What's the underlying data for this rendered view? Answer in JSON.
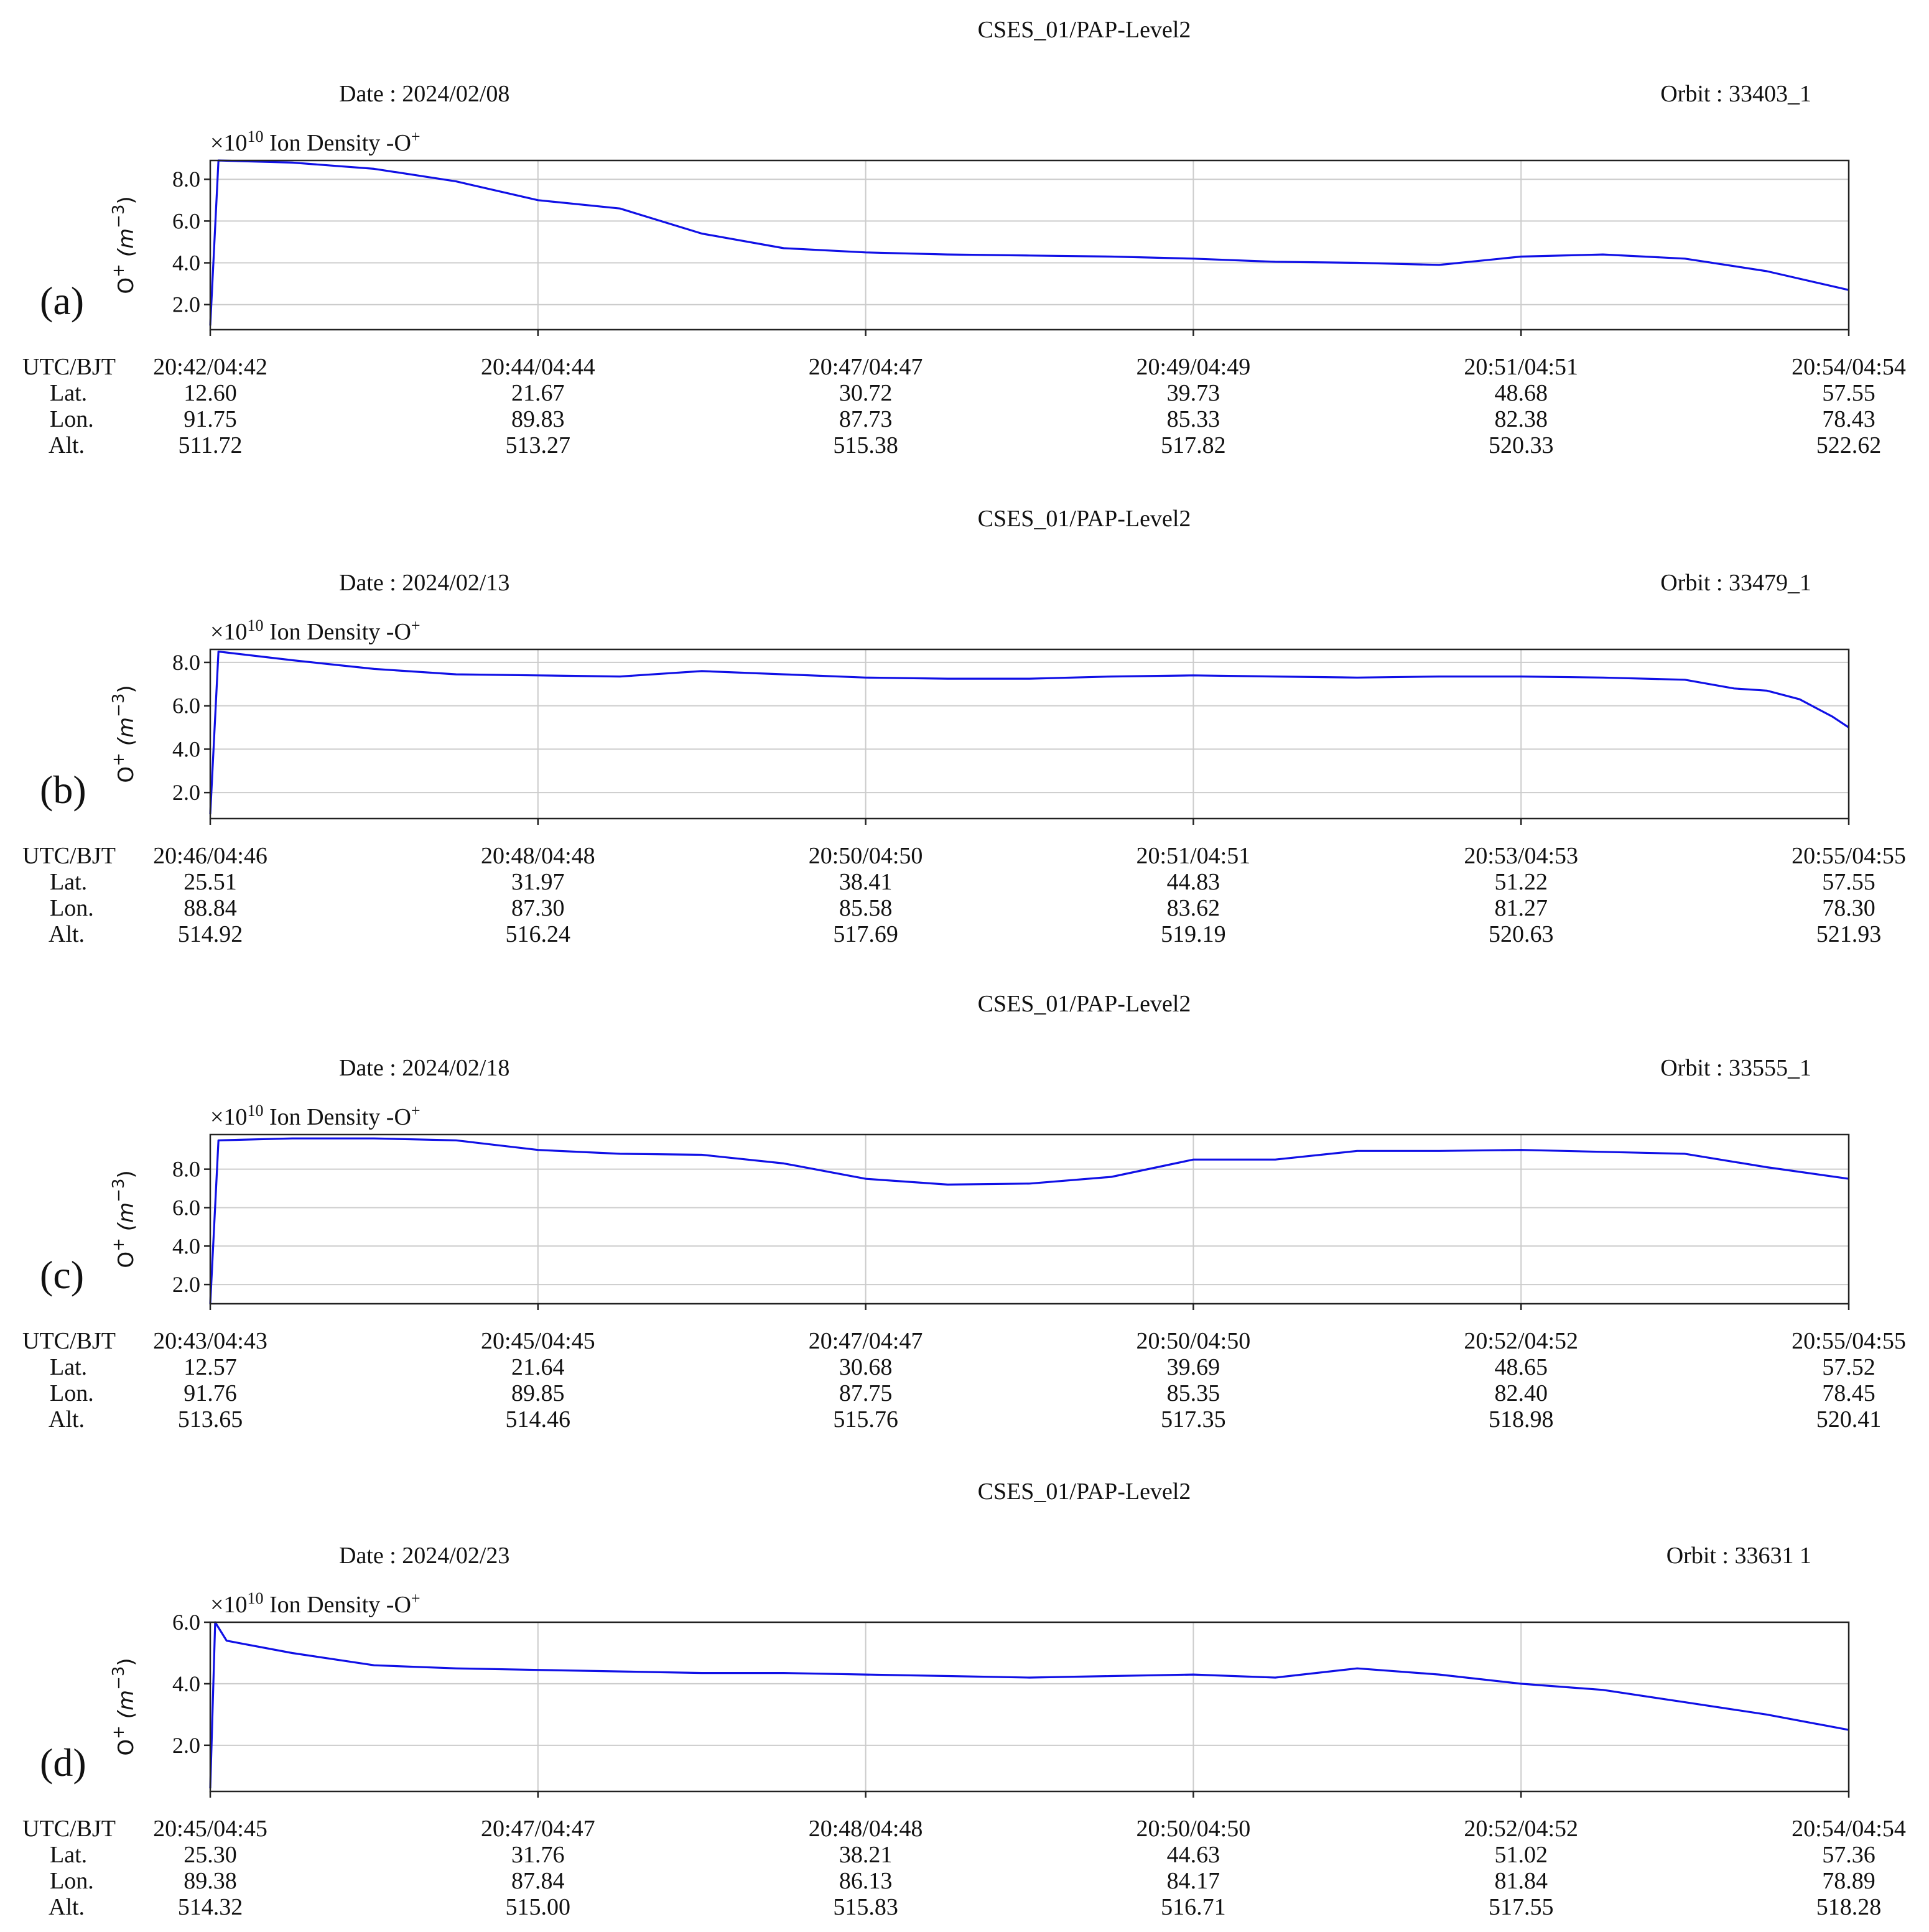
{
  "chart_data": [
    {
      "panel": "(a)",
      "type": "line",
      "title": "CSES_01/PAP-Level2",
      "date": "Date : 2024/02/08",
      "orbit": "Orbit : 33403_1",
      "multiplier": "×10",
      "exponent": "10",
      "series_label": "Ion Density -O",
      "ylabel": "O",
      "yunit": "m",
      "ylim": [
        0.8,
        8.9
      ],
      "yticks": [
        "2.0",
        "4.0",
        "6.0",
        "8.0"
      ],
      "row_labels": [
        "UTC/BJT",
        "Lat.",
        "Lon.",
        "Alt."
      ],
      "columns": [
        {
          "time": "20:42/04:42",
          "lat": "12.60",
          "lon": "91.75",
          "alt": "511.72"
        },
        {
          "time": "20:44/04:44",
          "lat": "21.67",
          "lon": "89.83",
          "alt": "513.27"
        },
        {
          "time": "20:47/04:47",
          "lat": "30.72",
          "lon": "87.73",
          "alt": "515.38"
        },
        {
          "time": "20:49/04:49",
          "lat": "39.73",
          "lon": "85.33",
          "alt": "517.82"
        },
        {
          "time": "20:51/04:51",
          "lat": "48.68",
          "lon": "82.38",
          "alt": "520.33"
        },
        {
          "time": "20:54/04:54",
          "lat": "57.55",
          "lon": "78.43",
          "alt": "522.62"
        }
      ],
      "series": [
        {
          "color": "#1010e6",
          "x": [
            0,
            0.005,
            0.05,
            0.1,
            0.15,
            0.2,
            0.25,
            0.3,
            0.35,
            0.4,
            0.45,
            0.5,
            0.55,
            0.6,
            0.65,
            0.7,
            0.75,
            0.8,
            0.85,
            0.9,
            0.95,
            1
          ],
          "y": [
            1.0,
            8.9,
            8.8,
            8.5,
            7.9,
            7.0,
            6.6,
            5.4,
            4.7,
            4.5,
            4.4,
            4.35,
            4.3,
            4.2,
            4.05,
            4.0,
            3.9,
            4.3,
            4.4,
            4.2,
            3.6,
            2.7
          ]
        }
      ]
    },
    {
      "panel": "(b)",
      "type": "line",
      "title": "CSES_01/PAP-Level2",
      "date": "Date : 2024/02/13",
      "orbit": "Orbit : 33479_1",
      "multiplier": "×10",
      "exponent": "10",
      "series_label": "Ion Density -O",
      "ylabel": "O",
      "yunit": "m",
      "ylim": [
        0.8,
        8.6
      ],
      "yticks": [
        "2.0",
        "4.0",
        "6.0",
        "8.0"
      ],
      "row_labels": [
        "UTC/BJT",
        "Lat.",
        "Lon.",
        "Alt."
      ],
      "columns": [
        {
          "time": "20:46/04:46",
          "lat": "25.51",
          "lon": "88.84",
          "alt": "514.92"
        },
        {
          "time": "20:48/04:48",
          "lat": "31.97",
          "lon": "87.30",
          "alt": "516.24"
        },
        {
          "time": "20:50/04:50",
          "lat": "38.41",
          "lon": "85.58",
          "alt": "517.69"
        },
        {
          "time": "20:51/04:51",
          "lat": "44.83",
          "lon": "83.62",
          "alt": "519.19"
        },
        {
          "time": "20:53/04:53",
          "lat": "51.22",
          "lon": "81.27",
          "alt": "520.63"
        },
        {
          "time": "20:55/04:55",
          "lat": "57.55",
          "lon": "78.30",
          "alt": "521.93"
        }
      ],
      "series": [
        {
          "color": "#1010e6",
          "x": [
            0,
            0.005,
            0.05,
            0.1,
            0.15,
            0.2,
            0.25,
            0.3,
            0.35,
            0.4,
            0.45,
            0.5,
            0.55,
            0.6,
            0.65,
            0.7,
            0.75,
            0.8,
            0.85,
            0.9,
            0.93,
            0.95,
            0.97,
            0.99,
            1
          ],
          "y": [
            1.0,
            8.5,
            8.1,
            7.7,
            7.45,
            7.4,
            7.35,
            7.6,
            7.45,
            7.3,
            7.25,
            7.25,
            7.35,
            7.4,
            7.35,
            7.3,
            7.35,
            7.35,
            7.3,
            7.2,
            6.8,
            6.7,
            6.3,
            5.5,
            5.0
          ]
        }
      ]
    },
    {
      "panel": "(c)",
      "type": "line",
      "title": "CSES_01/PAP-Level2",
      "date": "Date : 2024/02/18",
      "orbit": "Orbit : 33555_1",
      "multiplier": "×10",
      "exponent": "10",
      "series_label": "Ion Density -O",
      "ylabel": "O",
      "yunit": "m",
      "ylim": [
        1.0,
        9.8
      ],
      "yticks": [
        "2.0",
        "4.0",
        "6.0",
        "8.0"
      ],
      "row_labels": [
        "UTC/BJT",
        "Lat.",
        "Lon.",
        "Alt."
      ],
      "columns": [
        {
          "time": "20:43/04:43",
          "lat": "12.57",
          "lon": "91.76",
          "alt": "513.65"
        },
        {
          "time": "20:45/04:45",
          "lat": "21.64",
          "lon": "89.85",
          "alt": "514.46"
        },
        {
          "time": "20:47/04:47",
          "lat": "30.68",
          "lon": "87.75",
          "alt": "515.76"
        },
        {
          "time": "20:50/04:50",
          "lat": "39.69",
          "lon": "85.35",
          "alt": "517.35"
        },
        {
          "time": "20:52/04:52",
          "lat": "48.65",
          "lon": "82.40",
          "alt": "518.98"
        },
        {
          "time": "20:55/04:55",
          "lat": "57.52",
          "lon": "78.45",
          "alt": "520.41"
        }
      ],
      "series": [
        {
          "color": "#1010e6",
          "x": [
            0,
            0.005,
            0.05,
            0.1,
            0.15,
            0.2,
            0.25,
            0.3,
            0.35,
            0.4,
            0.45,
            0.5,
            0.55,
            0.6,
            0.65,
            0.7,
            0.75,
            0.8,
            0.85,
            0.9,
            0.95,
            1
          ],
          "y": [
            1.0,
            9.5,
            9.6,
            9.6,
            9.5,
            9.0,
            8.8,
            8.75,
            8.3,
            7.5,
            7.2,
            7.25,
            7.6,
            8.5,
            8.5,
            8.95,
            8.95,
            9.0,
            8.9,
            8.8,
            8.1,
            7.5
          ]
        }
      ]
    },
    {
      "panel": "(d)",
      "type": "line",
      "title": "CSES_01/PAP-Level2",
      "date": "Date : 2024/02/23",
      "orbit": "Orbit : 33631  1",
      "multiplier": "×10",
      "exponent": "10",
      "series_label": "Ion Density -O",
      "ylabel": "O",
      "yunit": "m",
      "ylim": [
        0.5,
        6.0
      ],
      "yticks": [
        "2.0",
        "4.0",
        "6.0"
      ],
      "row_labels": [
        "UTC/BJT",
        "Lat.",
        "Lon.",
        "Alt."
      ],
      "columns": [
        {
          "time": "20:45/04:45",
          "lat": "25.30",
          "lon": "89.38",
          "alt": "514.32"
        },
        {
          "time": "20:47/04:47",
          "lat": "31.76",
          "lon": "87.84",
          "alt": "515.00"
        },
        {
          "time": "20:48/04:48",
          "lat": "38.21",
          "lon": "86.13",
          "alt": "515.83"
        },
        {
          "time": "20:50/04:50",
          "lat": "44.63",
          "lon": "84.17",
          "alt": "516.71"
        },
        {
          "time": "20:52/04:52",
          "lat": "51.02",
          "lon": "81.84",
          "alt": "517.55"
        },
        {
          "time": "20:54/04:54",
          "lat": "57.36",
          "lon": "78.89",
          "alt": "518.28"
        }
      ],
      "series": [
        {
          "color": "#1010e6",
          "x": [
            0,
            0.003,
            0.01,
            0.05,
            0.1,
            0.15,
            0.2,
            0.25,
            0.3,
            0.35,
            0.4,
            0.45,
            0.5,
            0.55,
            0.6,
            0.65,
            0.7,
            0.75,
            0.8,
            0.85,
            0.9,
            0.95,
            1
          ],
          "y": [
            0.6,
            6.0,
            5.4,
            5.0,
            4.6,
            4.5,
            4.45,
            4.4,
            4.35,
            4.35,
            4.3,
            4.25,
            4.2,
            4.25,
            4.3,
            4.2,
            4.5,
            4.3,
            4.0,
            3.8,
            3.4,
            3.0,
            2.5
          ]
        }
      ]
    }
  ]
}
